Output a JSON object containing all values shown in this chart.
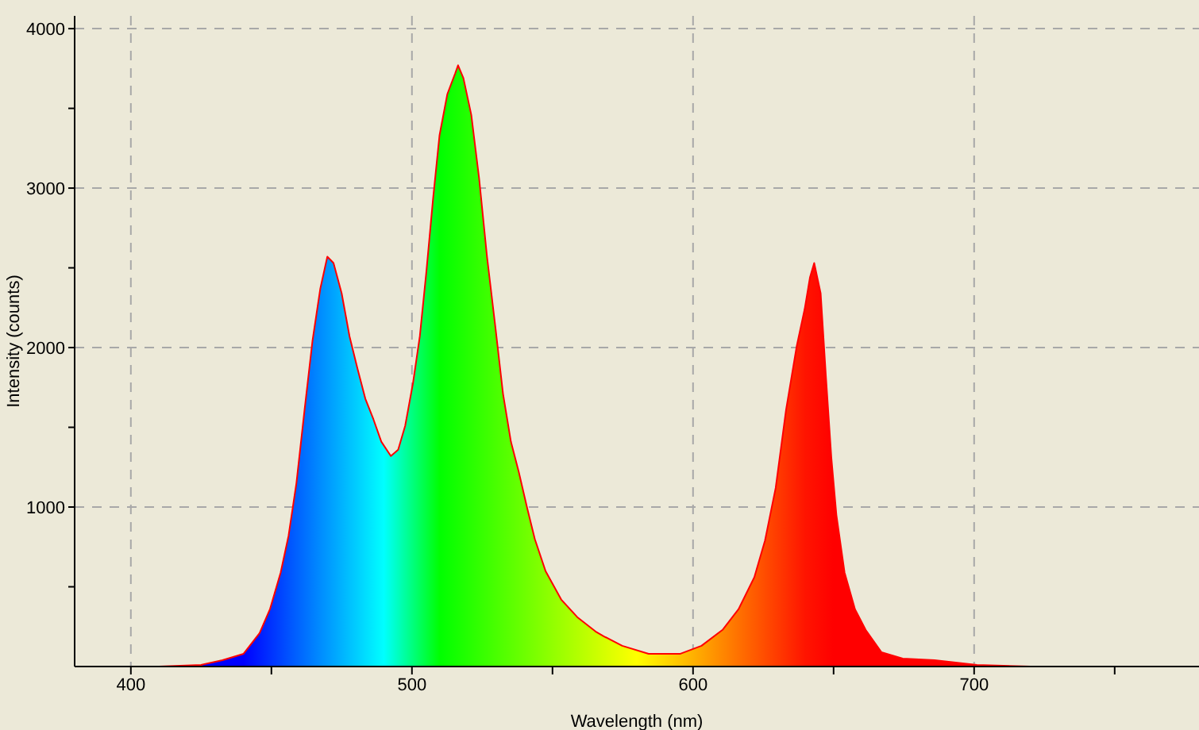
{
  "chart_data": {
    "type": "area",
    "xlabel": "Wavelength (nm)",
    "ylabel": "Intensity (counts)",
    "xlim": [
      380,
      780
    ],
    "ylim": [
      0,
      4080
    ],
    "xticks": [
      400,
      {
        "value": 450,
        "label": null
      },
      500,
      {
        "value": 550,
        "label": null
      },
      600,
      {
        "value": 650,
        "label": null
      },
      700,
      {
        "value": 750,
        "label": null
      }
    ],
    "yticks": [
      {
        "value": 500,
        "label": null
      },
      1000,
      {
        "value": 1500,
        "label": null
      },
      2000,
      {
        "value": 2500,
        "label": null
      },
      3000,
      {
        "value": 3500,
        "label": null
      },
      4000
    ],
    "grid": true,
    "marker": "none",
    "line_style": "solid",
    "x": [
      380,
      410,
      425,
      432.6,
      440.1,
      445.8,
      449.5,
      453.3,
      456.1,
      458.9,
      461.8,
      464.6,
      467.4,
      469.9,
      472.1,
      475,
      477.8,
      480.6,
      483.4,
      486.3,
      489.1,
      492.5,
      495.1,
      497.6,
      500.4,
      502.8,
      505.1,
      507.5,
      509.8,
      512.6,
      515.4,
      516.4,
      518.3,
      521.1,
      523.9,
      526.7,
      529.6,
      532.4,
      535.2,
      538,
      540.9,
      543.7,
      547.5,
      553.1,
      558.8,
      565.3,
      568.2,
      574.8,
      584.2,
      595.5,
      603,
      610.5,
      616.2,
      621.8,
      625.6,
      629.4,
      633.1,
      636.9,
      639.7,
      641.6,
      643.1,
      645.4,
      647.3,
      649.2,
      651,
      653.9,
      657.6,
      661.4,
      667,
      674.6,
      685.9,
      701,
      720,
      780
    ],
    "series": [
      {
        "color": "#ff0000",
        "values": [
          0,
          0,
          10,
          40,
          80,
          210,
          360,
          590,
          820,
          1150,
          1610,
          2040,
          2370,
          2570,
          2530,
          2340,
          2070,
          1870,
          1680,
          1550,
          1410,
          1320,
          1360,
          1510,
          1780,
          2070,
          2470,
          2930,
          3330,
          3590,
          3720,
          3770,
          3690,
          3460,
          3060,
          2570,
          2140,
          1710,
          1410,
          1220,
          1000,
          800,
          600,
          420,
          310,
          220,
          190,
          130,
          80,
          80,
          130,
          230,
          360,
          560,
          790,
          1120,
          1610,
          2010,
          2240,
          2440,
          2530,
          2340,
          1810,
          1310,
          950,
          590,
          360,
          230,
          90,
          50,
          40,
          10,
          0,
          0
        ]
      }
    ]
  }
}
